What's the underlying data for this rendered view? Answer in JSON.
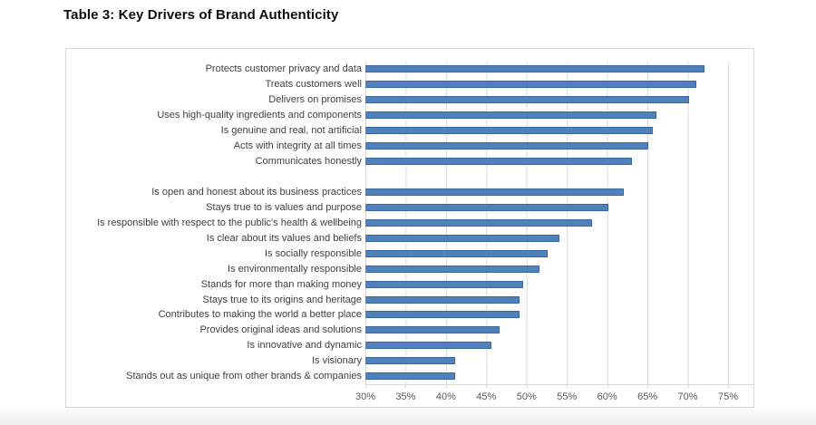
{
  "title": "Table 3: Key Drivers of Brand Authenticity",
  "chart_data": {
    "type": "bar",
    "orientation": "horizontal",
    "title": "Table 3: Key Drivers of Brand Authenticity",
    "categories": [
      "Protects customer privacy and data",
      "Treats customers well",
      "Delivers on promises",
      "Uses high-quality ingredients and components",
      "Is genuine and real, not artificial",
      "Acts with integrity at all times",
      "Communicates honestly",
      "",
      "Is open and honest about its business practices",
      "Stays true to is values and purpose",
      "Is responsible with respect to the public's health & wellbeing",
      "Is clear about its values and beliefs",
      "Is socially responsible",
      "Is environmentally responsible",
      "Stands for more than making money",
      "Stays true to its origins and heritage",
      "Contributes to making the world a better place",
      "Provides original ideas and solutions",
      "Is innovative and dynamic",
      "Is visionary",
      "Stands out as unique from other brands & companies"
    ],
    "values": [
      72,
      71,
      70,
      66,
      65.5,
      65,
      63,
      null,
      62,
      60,
      58,
      54,
      52.5,
      51.5,
      49.5,
      49,
      49,
      46.5,
      45.5,
      41,
      41
    ],
    "xticks": [
      "30%",
      "35%",
      "40%",
      "45%",
      "50%",
      "55%",
      "60%",
      "65%",
      "70%",
      "75%"
    ],
    "xlim": [
      30,
      75
    ],
    "grid": true,
    "legend": false,
    "bar_color": "#4f81bd",
    "bar_border_color": "#3a679e",
    "gridline_color": "#dadada"
  }
}
